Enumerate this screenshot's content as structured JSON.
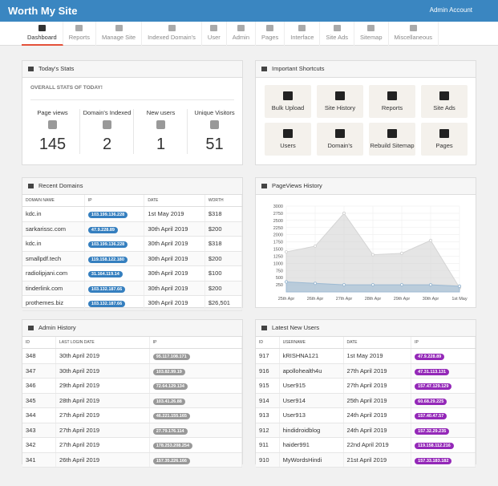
{
  "header": {
    "brand": "Worth My Site",
    "account": "Admin Account"
  },
  "nav": [
    "Dashboard",
    "Reports",
    "Manage Site",
    "Indexed Domain's",
    "User",
    "Admin",
    "Pages",
    "Interface",
    "Site Ads",
    "Sitemap",
    "Miscellaneous"
  ],
  "stats": {
    "title": "Today's Stats",
    "subtitle": "OVERALL STATS OF TODAY!",
    "items": [
      {
        "label": "Page views",
        "value": 145
      },
      {
        "label": "Domain's Indexed",
        "value": 2
      },
      {
        "label": "New users",
        "value": 1
      },
      {
        "label": "Unique Visitors",
        "value": 51
      }
    ]
  },
  "shortcuts": {
    "title": "Important Shortcuts",
    "items": [
      "Bulk Upload",
      "Site History",
      "Reports",
      "Site Ads",
      "Users",
      "Domain's",
      "Rebuild Sitemap",
      "Pages"
    ]
  },
  "recent_domains": {
    "title": "Recent Domains",
    "columns": [
      "DOMAIN NAME",
      "IP",
      "DATE",
      "WORTH"
    ],
    "rows": [
      [
        "kdc.in",
        "103.199.136.228",
        "1st May 2019",
        "$318"
      ],
      [
        "sarkarissc.com",
        "47.9.228.89",
        "30th April 2019",
        "$200"
      ],
      [
        "kdc.in",
        "103.199.136.228",
        "30th April 2019",
        "$318"
      ],
      [
        "smallpdf.tech",
        "119.158.122.180",
        "30th April 2019",
        "$200"
      ],
      [
        "radiolipjani.com",
        "31.164.119.14",
        "30th April 2019",
        "$100"
      ],
      [
        "tinderlink.com",
        "103.132.187.66",
        "30th April 2019",
        "$200"
      ],
      [
        "prothemes.biz",
        "103.132.187.66",
        "30th April 2019",
        "$26,501"
      ]
    ]
  },
  "chart_data": {
    "type": "area",
    "title": "PageViews History",
    "x": [
      "25th Apr",
      "26th Apr",
      "27th Apr",
      "28th Apr",
      "29th Apr",
      "30th Apr",
      "1st May"
    ],
    "series": [
      {
        "color": "#d4d4d4",
        "values": [
          1400,
          1600,
          2750,
          1300,
          1350,
          1800,
          150
        ]
      },
      {
        "color": "#9dbad3",
        "values": [
          350,
          300,
          250,
          250,
          250,
          250,
          200
        ]
      }
    ],
    "ylim": [
      0,
      3000
    ],
    "yticks": [
      250,
      500,
      750,
      1000,
      1250,
      1500,
      1750,
      2000,
      2250,
      2500,
      2750,
      3000
    ],
    "grid": true
  },
  "admin_history": {
    "title": "Admin History",
    "columns": [
      "ID",
      "LAST LOGIN DATE",
      "IP"
    ],
    "rows": [
      [
        348,
        "30th April 2019",
        "95.117.108.171"
      ],
      [
        347,
        "30th April 2019",
        "103.82.99.19"
      ],
      [
        346,
        "29th April 2019",
        "72.64.129.134"
      ],
      [
        345,
        "28th April 2019",
        "103.41.26.88"
      ],
      [
        344,
        "27th April 2019",
        "46.221.155.165"
      ],
      [
        343,
        "27th April 2019",
        "27.79.176.114"
      ],
      [
        342,
        "27th April 2019",
        "178.253.208.254"
      ],
      [
        341,
        "26th April 2019",
        "157.35.226.166"
      ]
    ]
  },
  "latest_users": {
    "title": "Latest New Users",
    "columns": [
      "ID",
      "USERNAME",
      "DATE",
      "IP"
    ],
    "rows": [
      [
        917,
        "kRISHNA121",
        "1st May 2019",
        "47.9.228.89"
      ],
      [
        916,
        "apollohealth4u",
        "27th April 2019",
        "47.31.113.131"
      ],
      [
        915,
        "User915",
        "27th April 2019",
        "157.47.129.129"
      ],
      [
        914,
        "User914",
        "25th April 2019",
        "60.68.29.225"
      ],
      [
        913,
        "User913",
        "24th April 2019",
        "157.40.47.57"
      ],
      [
        912,
        "hindidroidblog",
        "24th April 2019",
        "157.32.29.235"
      ],
      [
        911,
        "haider991",
        "22nd April 2019",
        "119.158.112.216"
      ],
      [
        910,
        "MyWordsHindi",
        "21st April 2019",
        "157.33.183.182"
      ]
    ]
  }
}
